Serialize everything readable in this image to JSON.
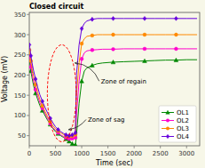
{
  "chart_data": {
    "type": "line",
    "title": "Closed circuit",
    "x_label": "Time (sec)",
    "y_label": "Voltage (mV)",
    "background_color": "#f7f7e8",
    "xlim": [
      0,
      3250
    ],
    "ylim": [
      25,
      355
    ],
    "xticks": [
      0,
      500,
      1000,
      1500,
      2000,
      2500,
      3000
    ],
    "yticks": [
      50,
      100,
      150,
      200,
      250,
      300,
      350
    ],
    "grid": false,
    "legend": "lower right",
    "x": [
      0,
      10,
      20,
      30,
      50,
      80,
      120,
      160,
      200,
      250,
      300,
      350,
      400,
      450,
      500,
      550,
      600,
      650,
      700,
      720,
      740,
      760,
      780,
      800,
      820,
      840,
      860,
      880,
      900,
      950,
      1000,
      1050,
      1100,
      1200,
      1300,
      1400,
      1600,
      1800,
      2000,
      2200,
      2400,
      2600,
      2800,
      3000,
      3200
    ],
    "series": [
      {
        "name": "OL1",
        "color": "#008800",
        "marker": "triangle",
        "values": [
          235,
          230,
          222,
          210,
          195,
          175,
          155,
          140,
          125,
          112,
          100,
          88,
          78,
          68,
          60,
          55,
          50,
          46,
          42,
          40,
          38,
          36,
          34,
          32,
          30,
          29,
          28,
          27,
          50,
          130,
          185,
          210,
          218,
          224,
          228,
          230,
          232,
          233,
          234,
          235,
          236,
          237,
          237,
          238,
          238
        ]
      },
      {
        "name": "OL2",
        "color": "#ff00cc",
        "marker": "circle",
        "values": [
          248,
          240,
          232,
          220,
          205,
          185,
          164,
          148,
          132,
          118,
          105,
          92,
          80,
          70,
          63,
          57,
          52,
          48,
          45,
          43,
          42,
          42,
          42,
          43,
          43,
          44,
          44,
          45,
          100,
          185,
          240,
          255,
          260,
          262,
          263,
          264,
          264,
          265,
          265,
          265,
          265,
          265,
          265,
          265,
          265
        ]
      },
      {
        "name": "OL3",
        "color": "#ff8800",
        "marker": "circle",
        "values": [
          262,
          255,
          246,
          235,
          218,
          198,
          176,
          158,
          140,
          124,
          110,
          97,
          85,
          75,
          67,
          62,
          57,
          53,
          50,
          49,
          48,
          48,
          48,
          48,
          49,
          50,
          51,
          53,
          150,
          230,
          278,
          290,
          296,
          298,
          300,
          300,
          300,
          300,
          300,
          300,
          300,
          300,
          300,
          300,
          300
        ]
      },
      {
        "name": "OL4",
        "color": "#6600dd",
        "marker": "diamond",
        "values": [
          275,
          268,
          260,
          248,
          232,
          212,
          190,
          170,
          152,
          135,
          120,
          106,
          93,
          82,
          72,
          65,
          60,
          56,
          52,
          51,
          50,
          50,
          50,
          51,
          52,
          53,
          55,
          57,
          200,
          275,
          315,
          328,
          334,
          338,
          340,
          340,
          340,
          340,
          340,
          340,
          340,
          340,
          340,
          340,
          340
        ]
      }
    ],
    "annotations": [
      {
        "text": "Zone of regain",
        "xy": [
          870,
          230
        ],
        "xytext": [
          1350,
          185
        ]
      },
      {
        "text": "Zone of sag",
        "xy": [
          750,
          65
        ],
        "xytext": [
          1100,
          90
        ]
      }
    ],
    "ellipse": {
      "cx": 620,
      "cy": 155,
      "width": 550,
      "height": 240,
      "color": "red",
      "line_style": "dashed"
    }
  }
}
